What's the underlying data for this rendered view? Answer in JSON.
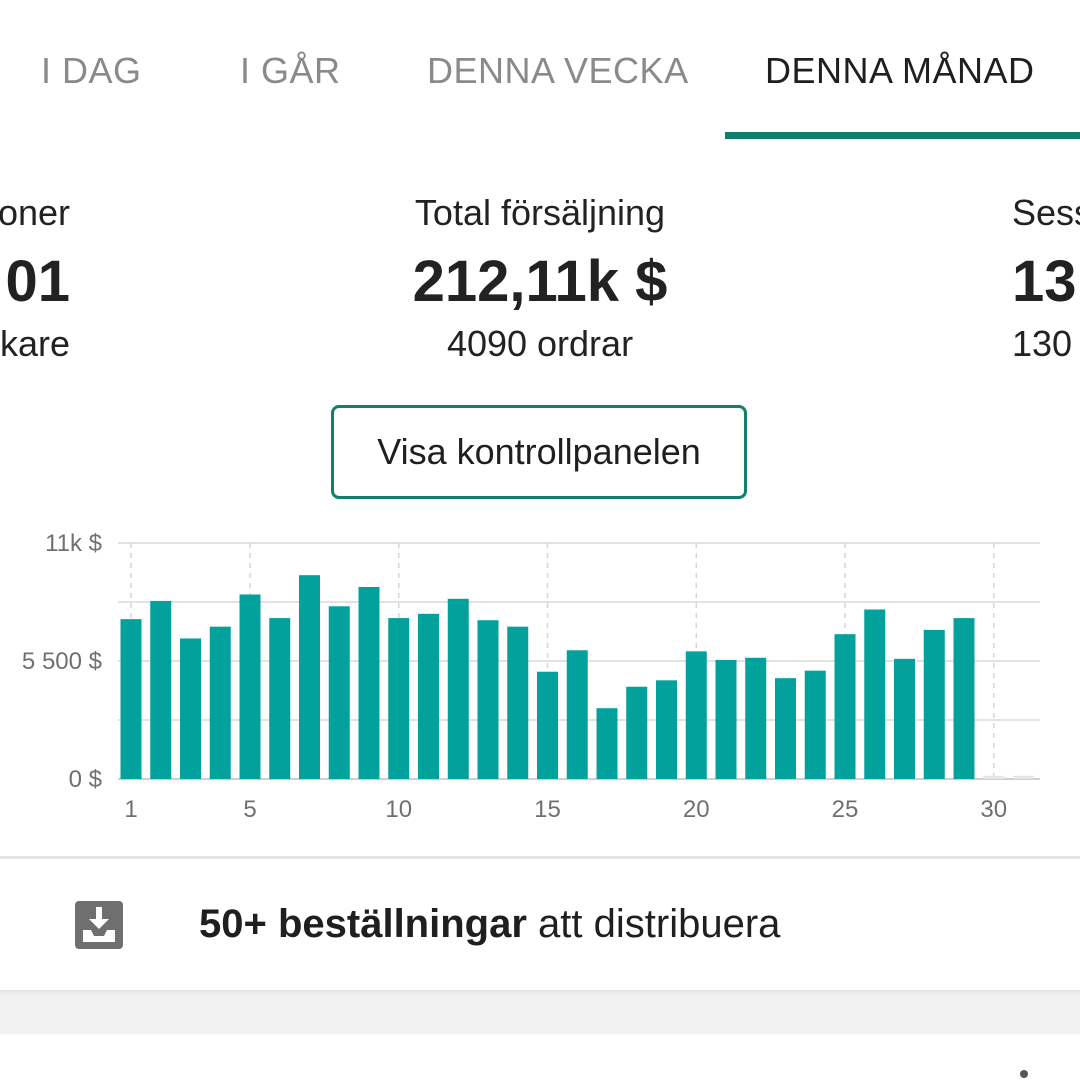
{
  "tabs": [
    {
      "label": "I DAG"
    },
    {
      "label": "I GÅR"
    },
    {
      "label": "DENNA VECKA"
    },
    {
      "label": "DENNA MÅNAD"
    }
  ],
  "stats": {
    "left": {
      "label": "oner",
      "value": "01",
      "sub": "kare"
    },
    "center": {
      "label": "Total försäljning",
      "value": "212,11k $",
      "sub": "4090 ordrar"
    },
    "right": {
      "label": "Sess",
      "value": "13",
      "sub": "130"
    }
  },
  "dashboard_button": {
    "label": "Visa kontrollpanelen"
  },
  "chart_data": {
    "type": "bar",
    "x": [
      1,
      2,
      3,
      4,
      5,
      6,
      7,
      8,
      9,
      10,
      11,
      12,
      13,
      14,
      15,
      16,
      17,
      18,
      19,
      20,
      21,
      22,
      23,
      24,
      25,
      26,
      27,
      28,
      29,
      30,
      31
    ],
    "values": [
      7450,
      8300,
      6550,
      7100,
      8600,
      7500,
      9500,
      8050,
      8950,
      7500,
      7700,
      8400,
      7400,
      7100,
      5000,
      6000,
      3300,
      4300,
      4600,
      5950,
      5550,
      5650,
      4700,
      5050,
      6750,
      7900,
      5600,
      6950,
      7500,
      150,
      150
    ],
    "ylim": [
      0,
      11000
    ],
    "yticks": [
      "11k $",
      "5 500 $",
      "0 $"
    ],
    "xticks": [
      "1",
      "5",
      "10",
      "15",
      "20",
      "25",
      "30"
    ],
    "bar_color": "#03a19b",
    "grid": true
  },
  "orders": {
    "bold": "50+ beställningar",
    "rest": " att distribuera",
    "icon": "download-tray-icon"
  }
}
